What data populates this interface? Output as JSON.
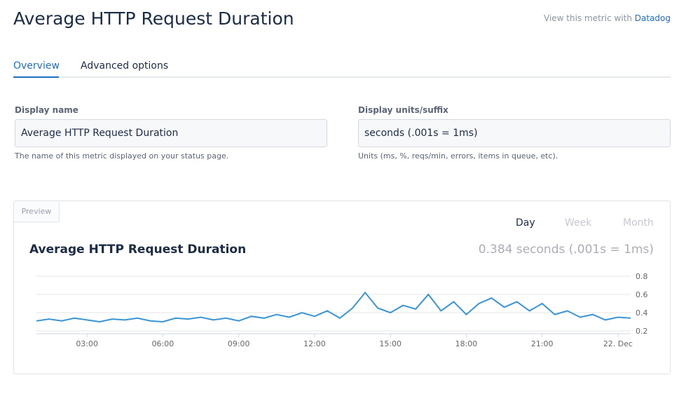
{
  "header": {
    "title": "Average HTTP Request Duration",
    "link_prefix": "View this metric with",
    "link": "Datadog"
  },
  "tabs": [
    "Overview",
    "Advanced options"
  ],
  "fields": [
    {
      "label": "Display name",
      "value": "Average HTTP Request Duration",
      "help": "The name of this metric displayed on your status page."
    },
    {
      "label": "Display units/suffix",
      "value": "seconds (.001s = 1ms)",
      "help": "Units (ms, %, reqs/min, errors, items in queue, etc)."
    }
  ],
  "preview": {
    "tab": "Preview",
    "ranges": [
      "Day",
      "Week",
      "Month"
    ],
    "summary": "0.384 seconds (.001s = 1ms)"
  },
  "chart_data": {
    "type": "line",
    "title": "Average HTTP Request Duration",
    "x": [
      1.0,
      1.5,
      2.0,
      2.5,
      3.0,
      3.5,
      4.0,
      4.5,
      5.0,
      5.5,
      6.0,
      6.5,
      7.0,
      7.5,
      8.0,
      8.5,
      9.0,
      9.5,
      10.0,
      10.5,
      11.0,
      11.5,
      12.0,
      12.5,
      13.0,
      13.5,
      14.0,
      14.5,
      15.0,
      15.5,
      16.0,
      16.5,
      17.0,
      17.5,
      18.0,
      18.5,
      19.0,
      19.5,
      20.0,
      20.5,
      21.0,
      21.5,
      22.0,
      22.5,
      23.0,
      23.5,
      24.0,
      24.5
    ],
    "values": [
      0.31,
      0.33,
      0.31,
      0.34,
      0.32,
      0.3,
      0.33,
      0.32,
      0.34,
      0.31,
      0.3,
      0.34,
      0.33,
      0.35,
      0.32,
      0.34,
      0.31,
      0.36,
      0.34,
      0.38,
      0.35,
      0.4,
      0.36,
      0.42,
      0.34,
      0.45,
      0.62,
      0.45,
      0.4,
      0.48,
      0.44,
      0.6,
      0.42,
      0.52,
      0.38,
      0.5,
      0.56,
      0.46,
      0.52,
      0.42,
      0.5,
      0.38,
      0.42,
      0.35,
      0.38,
      0.32,
      0.35,
      0.34
    ],
    "color": "#3a95d6",
    "xlim": [
      1,
      24.5
    ],
    "xticks": [
      {
        "value": 3,
        "label": "03:00"
      },
      {
        "value": 6,
        "label": "06:00"
      },
      {
        "value": 9,
        "label": "09:00"
      },
      {
        "value": 12,
        "label": "12:00"
      },
      {
        "value": 15,
        "label": "15:00"
      },
      {
        "value": 18,
        "label": "18:00"
      },
      {
        "value": 21,
        "label": "21:00"
      },
      {
        "value": 24,
        "label": "22. Dec"
      }
    ],
    "ylim": [
      0.2,
      0.8
    ],
    "yticks": [
      0.2,
      0.4,
      0.6,
      0.8
    ],
    "grid": true
  }
}
